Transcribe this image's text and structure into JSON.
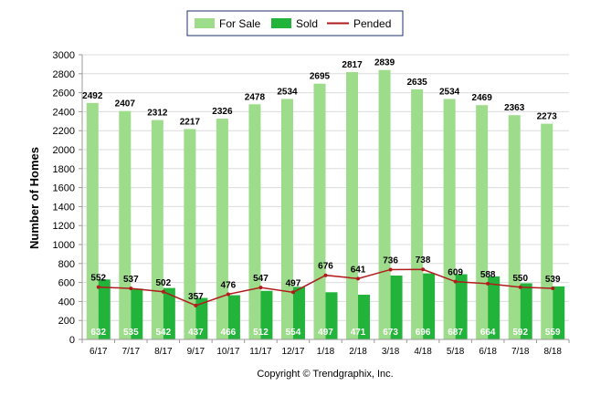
{
  "chart_data": {
    "type": "bar",
    "categories": [
      "6/17",
      "7/17",
      "8/17",
      "9/17",
      "10/17",
      "11/17",
      "12/17",
      "1/18",
      "2/18",
      "3/18",
      "4/18",
      "5/18",
      "6/18",
      "7/18",
      "8/18"
    ],
    "series": [
      {
        "name": "For Sale",
        "kind": "bar",
        "color": "#9ddc8a",
        "values": [
          2492,
          2407,
          2312,
          2217,
          2326,
          2478,
          2534,
          2695,
          2817,
          2839,
          2635,
          2534,
          2469,
          2363,
          2273
        ]
      },
      {
        "name": "Sold",
        "kind": "bar",
        "color": "#22b33a",
        "values": [
          632,
          535,
          542,
          437,
          466,
          512,
          554,
          497,
          471,
          673,
          696,
          687,
          664,
          592,
          559
        ]
      },
      {
        "name": "Pended",
        "kind": "line",
        "color": "#b01c1c",
        "values": [
          552,
          537,
          502,
          357,
          476,
          547,
          497,
          676,
          641,
          736,
          738,
          609,
          588,
          550,
          539
        ]
      }
    ],
    "xlabel": "",
    "ylabel": "Number of Homes",
    "ylim": [
      0,
      3000
    ],
    "yticks": [
      0,
      200,
      400,
      600,
      800,
      1000,
      1200,
      1400,
      1600,
      1800,
      2000,
      2200,
      2400,
      2600,
      2800,
      3000
    ],
    "grid": true,
    "legend_position": "top-center"
  },
  "footer": {
    "copyright": "Copyright © Trendgraphix, Inc."
  }
}
